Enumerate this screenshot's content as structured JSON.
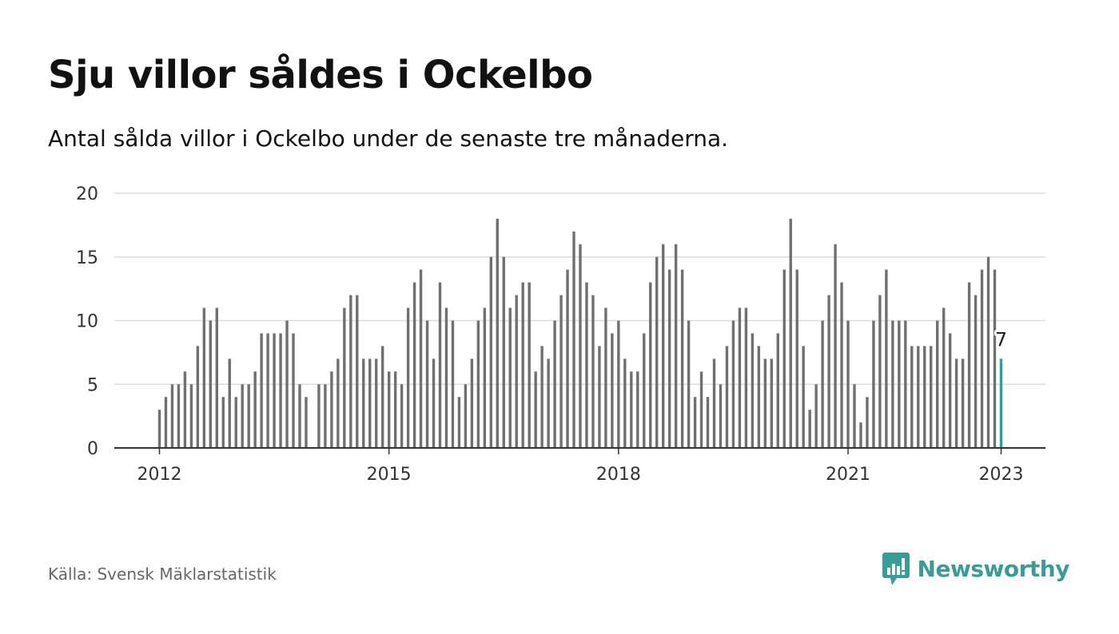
{
  "header": {
    "title": "Sju villor såldes i Ockelbo",
    "subtitle": "Antal sålda villor i Ockelbo under de senaste tre månaderna."
  },
  "footer": {
    "source": "Källa: Svensk Mäklarstatistik",
    "brand": "Newsworthy"
  },
  "colors": {
    "bar": "#707070",
    "highlight": "#23a39e",
    "grid": "#dddddd",
    "axis": "#333333",
    "brand": "#3a9c96"
  },
  "icons": {
    "logo": "bar-chart-speech-bubble-icon"
  },
  "chart_data": {
    "type": "bar",
    "title": "",
    "xlabel": "",
    "ylabel": "",
    "x_start": "2012-01",
    "ylim": [
      0,
      20
    ],
    "yticks": [
      "0",
      "5",
      "10",
      "15",
      "20"
    ],
    "xticks": [
      {
        "label": "2012",
        "x": "2012-01"
      },
      {
        "label": "2015",
        "x": "2015-01"
      },
      {
        "label": "2018",
        "x": "2018-01"
      },
      {
        "label": "2021",
        "x": "2021-01"
      },
      {
        "label": "2023",
        "x": "2023-01"
      }
    ],
    "grid": true,
    "values": [
      3,
      4,
      5,
      5,
      6,
      5,
      8,
      11,
      10,
      11,
      4,
      7,
      4,
      5,
      5,
      6,
      9,
      9,
      9,
      9,
      10,
      9,
      5,
      4,
      null,
      5,
      5,
      6,
      7,
      11,
      12,
      12,
      7,
      7,
      7,
      8,
      6,
      6,
      5,
      11,
      13,
      14,
      10,
      7,
      13,
      11,
      10,
      4,
      5,
      7,
      10,
      11,
      15,
      18,
      15,
      11,
      12,
      13,
      13,
      6,
      8,
      7,
      10,
      12,
      14,
      17,
      16,
      13,
      12,
      8,
      11,
      9,
      10,
      7,
      6,
      6,
      9,
      13,
      15,
      16,
      14,
      16,
      14,
      10,
      4,
      6,
      4,
      7,
      5,
      8,
      10,
      11,
      11,
      9,
      8,
      7,
      7,
      9,
      14,
      18,
      14,
      8,
      3,
      5,
      10,
      12,
      16,
      13,
      10,
      5,
      2,
      4,
      10,
      12,
      14,
      10,
      10,
      10,
      8,
      8,
      8,
      8,
      10,
      11,
      9,
      7,
      7,
      13,
      12,
      14,
      15,
      14,
      7
    ],
    "highlight_label": "7"
  }
}
